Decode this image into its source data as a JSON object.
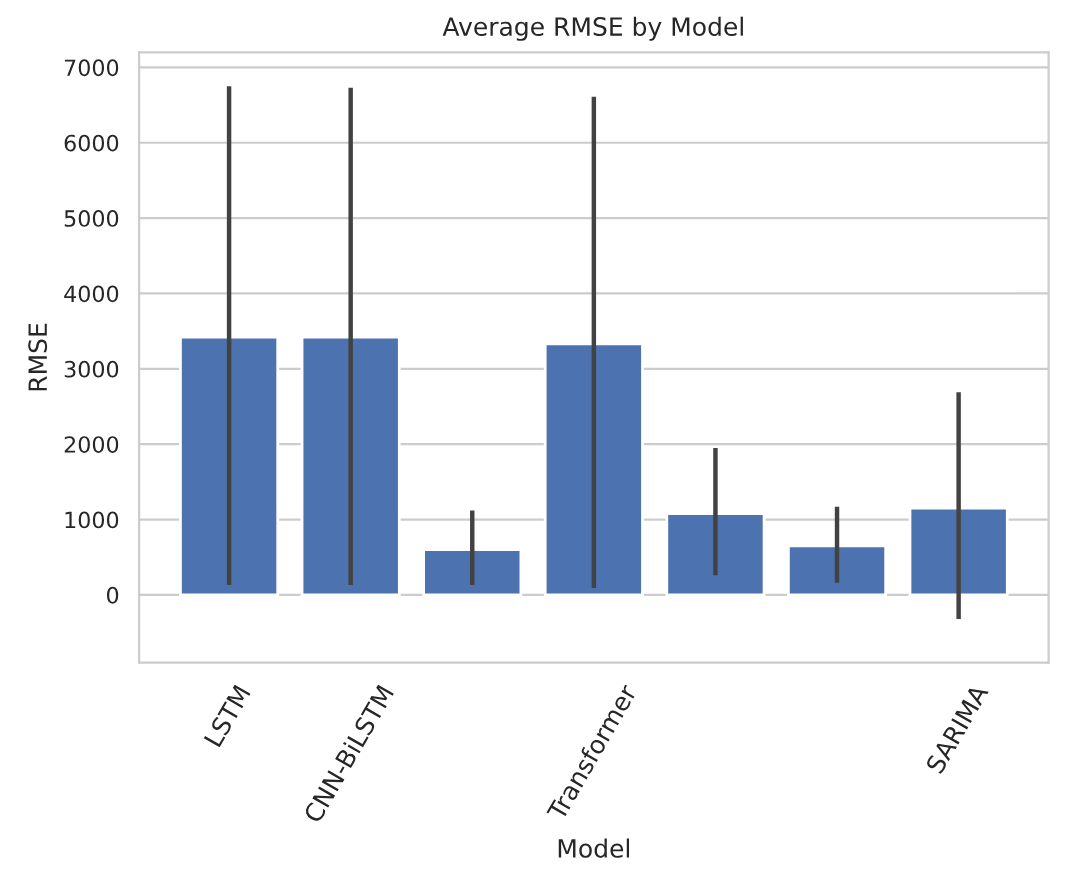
{
  "chart_data": {
    "type": "bar",
    "title": "Average RMSE by Model",
    "xlabel": "Model",
    "ylabel": "RMSE",
    "categories": [
      "LSTM",
      "CNN-BiLSTM",
      null,
      "Transformer",
      null,
      null,
      "SARIMA"
    ],
    "values": [
      3420,
      3420,
      600,
      3330,
      1080,
      650,
      1150
    ],
    "errors": [
      [
        130,
        6750
      ],
      [
        130,
        6730
      ],
      [
        130,
        1120
      ],
      [
        90,
        6610
      ],
      [
        260,
        1950
      ],
      [
        160,
        1170
      ],
      [
        -320,
        2690
      ]
    ],
    "color": "#4c72b0",
    "ylim": [
      -900,
      7200
    ],
    "yticks": [
      0,
      1000,
      2000,
      3000,
      4000,
      5000,
      6000,
      7000
    ],
    "grid": "y"
  }
}
